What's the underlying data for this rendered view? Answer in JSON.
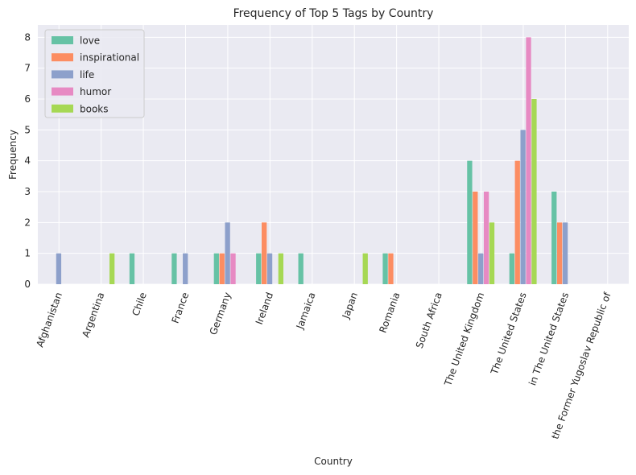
{
  "chart_data": {
    "type": "bar",
    "title": "Frequency of Top 5 Tags by Country",
    "xlabel": "Country",
    "ylabel": "Frequency",
    "ylim": [
      0,
      8.4
    ],
    "yticks": [
      0,
      1,
      2,
      3,
      4,
      5,
      6,
      7,
      8
    ],
    "grid": true,
    "legend_position": "top-left",
    "categories": [
      "Afghanistan",
      "Argentina",
      "Chile",
      "France",
      "Germany",
      "Ireland",
      "Jamaica",
      "Japan",
      "Romania",
      "South Africa",
      "The United Kingdom",
      "The United States",
      "in The United States",
      "the Former Yugoslav Republic of"
    ],
    "series": [
      {
        "name": "love",
        "color": "#66c2a5",
        "values": [
          0,
          0,
          1,
          1,
          1,
          1,
          1,
          0,
          1,
          0,
          4,
          1,
          3,
          0
        ]
      },
      {
        "name": "inspirational",
        "color": "#fc8d62",
        "values": [
          0,
          0,
          0,
          0,
          1,
          2,
          0,
          0,
          1,
          0,
          3,
          4,
          2,
          0
        ]
      },
      {
        "name": "life",
        "color": "#8da0cb",
        "values": [
          1,
          0,
          0,
          1,
          2,
          1,
          0,
          0,
          0,
          0,
          1,
          5,
          2,
          0
        ]
      },
      {
        "name": "humor",
        "color": "#e78ac3",
        "values": [
          0,
          0,
          0,
          0,
          1,
          0,
          0,
          0,
          0,
          0,
          3,
          8,
          0,
          0
        ]
      },
      {
        "name": "books",
        "color": "#a6d854",
        "values": [
          0,
          1,
          0,
          0,
          0,
          1,
          0,
          1,
          0,
          0,
          2,
          6,
          0,
          0
        ]
      }
    ]
  }
}
